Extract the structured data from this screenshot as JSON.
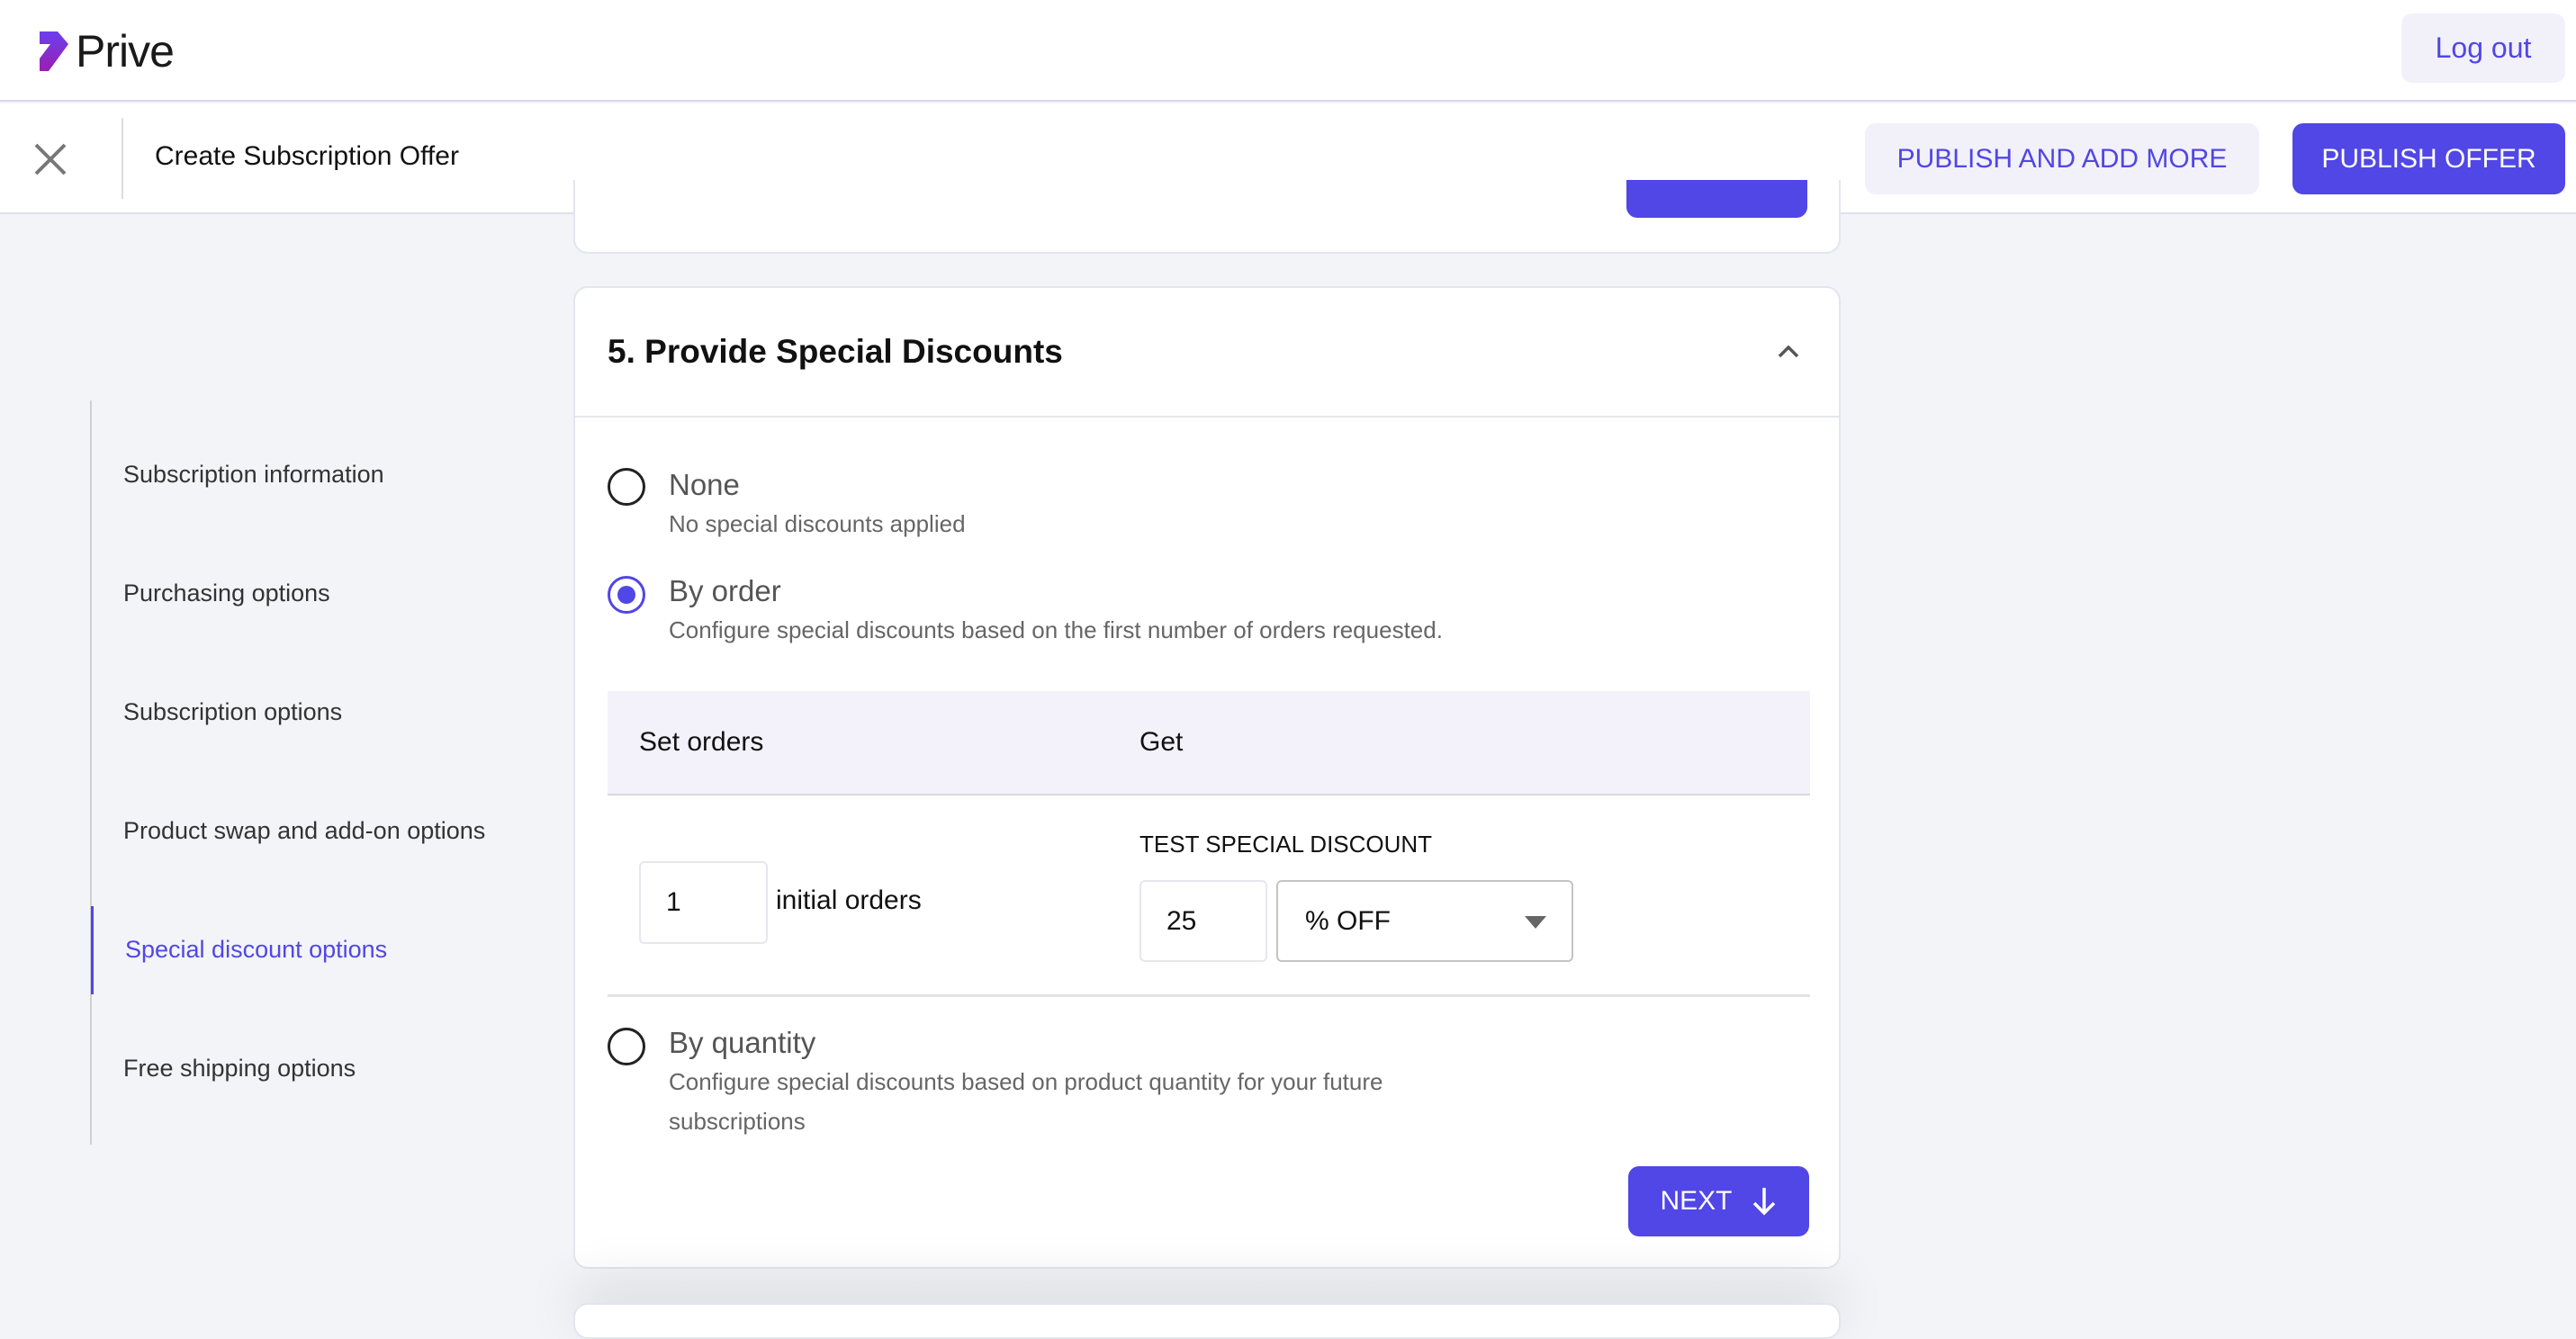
{
  "header": {
    "logo_text": "Prive",
    "logout_label": "Log out"
  },
  "toolbar": {
    "title": "Create Subscription Offer",
    "publish_add_more": "PUBLISH AND ADD MORE",
    "publish_offer": "PUBLISH OFFER"
  },
  "sidebar": {
    "items": [
      {
        "label": "Subscription information"
      },
      {
        "label": "Purchasing options"
      },
      {
        "label": "Subscription options"
      },
      {
        "label": "Product swap and add-on options"
      },
      {
        "label": "Special discount options",
        "active": true
      },
      {
        "label": "Free shipping options"
      }
    ]
  },
  "section": {
    "title": "5. Provide Special Discounts",
    "options": [
      {
        "label": "None",
        "description": "No special discounts applied",
        "selected": false
      },
      {
        "label": "By order",
        "description": "Configure special discounts based on the first number of orders requested.",
        "selected": true
      },
      {
        "label": "By quantity",
        "description": "Configure special discounts based on product quantity for your future",
        "description2": "subscriptions",
        "selected": false
      }
    ],
    "table": {
      "col1": "Set orders",
      "col2": "Get",
      "orders_value": "1",
      "orders_suffix": "initial orders",
      "discount_label": "TEST SPECIAL DISCOUNT",
      "discount_value": "25",
      "discount_type": "% OFF"
    },
    "next_label": "NEXT"
  },
  "colors": {
    "accent": "#5146e6",
    "logo": "#7b2fd0"
  }
}
